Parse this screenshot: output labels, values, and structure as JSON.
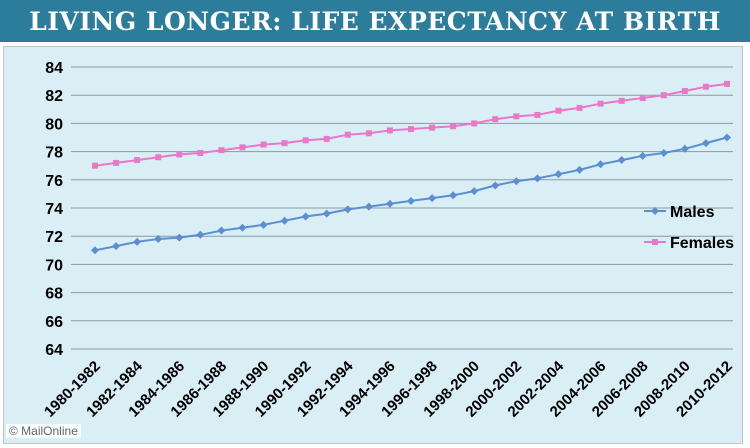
{
  "header": {
    "title": "LIVING LONGER: LIFE EXPECTANCY AT BIRTH"
  },
  "credit": "© MailOnline",
  "colors": {
    "males": "#5b8fd1",
    "females": "#e879c8",
    "title_bg": "#2c7c9c",
    "plot_bg": "#daeef6"
  },
  "chart_data": {
    "type": "line",
    "title": "LIVING LONGER: LIFE EXPECTANCY AT BIRTH",
    "xlabel": "",
    "ylabel": "",
    "ylim": [
      64,
      84
    ],
    "yticks": [
      64,
      66,
      68,
      70,
      72,
      74,
      76,
      78,
      80,
      82,
      84
    ],
    "x": [
      "1980-1982",
      "1981-1983",
      "1982-1984",
      "1983-1985",
      "1984-1986",
      "1985-1987",
      "1986-1988",
      "1987-1989",
      "1988-1990",
      "1989-1991",
      "1990-1992",
      "1991-1993",
      "1992-1994",
      "1993-1995",
      "1994-1996",
      "1995-1997",
      "1996-1998",
      "1997-1999",
      "1998-2000",
      "1999-2001",
      "2000-2002",
      "2001-2003",
      "2002-2004",
      "2003-2005",
      "2004-2006",
      "2005-2007",
      "2006-2008",
      "2007-2009",
      "2008-2010",
      "2009-2011",
      "2010-2012"
    ],
    "xtick_labels": [
      "1980-1982",
      "1982-1984",
      "1984-1986",
      "1986-1988",
      "1988-1990",
      "1990-1992",
      "1992-1994",
      "1994-1996",
      "1996-1998",
      "1998-2000",
      "2000-2002",
      "2002-2004",
      "2004-2006",
      "2006-2008",
      "2008-2010",
      "2010-2012"
    ],
    "legend_position": "right",
    "grid": true,
    "series": [
      {
        "name": "Males",
        "values": [
          71.0,
          71.3,
          71.6,
          71.8,
          71.9,
          72.1,
          72.4,
          72.6,
          72.8,
          73.1,
          73.4,
          73.6,
          73.9,
          74.1,
          74.3,
          74.5,
          74.7,
          74.9,
          75.2,
          75.6,
          75.9,
          76.1,
          76.4,
          76.7,
          77.1,
          77.4,
          77.7,
          77.9,
          78.2,
          78.6,
          79.0
        ]
      },
      {
        "name": "Females",
        "values": [
          77.0,
          77.2,
          77.4,
          77.6,
          77.8,
          77.9,
          78.1,
          78.3,
          78.5,
          78.6,
          78.8,
          78.9,
          79.2,
          79.3,
          79.5,
          79.6,
          79.7,
          79.8,
          80.0,
          80.3,
          80.5,
          80.6,
          80.9,
          81.1,
          81.4,
          81.6,
          81.8,
          82.0,
          82.3,
          82.6,
          82.8
        ]
      }
    ]
  }
}
